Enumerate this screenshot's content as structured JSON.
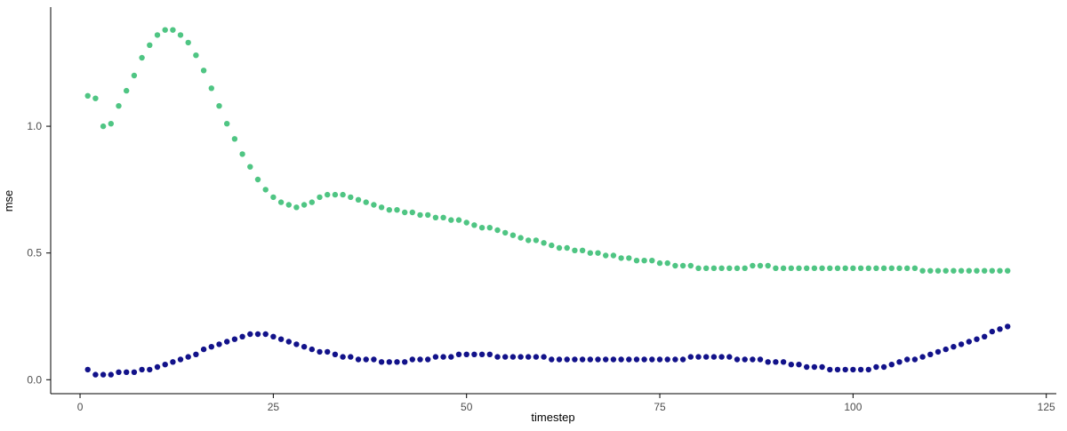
{
  "chart_data": {
    "type": "scatter",
    "title": "",
    "xlabel": "timestep",
    "ylabel": "mse",
    "x_ticks": [
      0,
      25,
      50,
      75,
      100,
      125
    ],
    "y_ticks": [
      0.0,
      0.5,
      1.0
    ],
    "xlim": [
      -3.8,
      126.3
    ],
    "ylim": [
      -0.055,
      1.47
    ],
    "grid": "off",
    "legend": "none",
    "axis_color": "#000000",
    "tick_label_color": "#4d4d4d",
    "series": [
      {
        "name": "green",
        "color": "#4fc583",
        "x_start": 1,
        "values": [
          1.12,
          1.11,
          1.0,
          1.01,
          1.08,
          1.14,
          1.2,
          1.27,
          1.32,
          1.36,
          1.38,
          1.38,
          1.36,
          1.33,
          1.28,
          1.22,
          1.15,
          1.08,
          1.01,
          0.95,
          0.89,
          0.84,
          0.79,
          0.75,
          0.72,
          0.7,
          0.69,
          0.68,
          0.69,
          0.7,
          0.72,
          0.73,
          0.73,
          0.73,
          0.72,
          0.71,
          0.7,
          0.69,
          0.68,
          0.67,
          0.67,
          0.66,
          0.66,
          0.65,
          0.65,
          0.64,
          0.64,
          0.63,
          0.63,
          0.62,
          0.61,
          0.6,
          0.6,
          0.59,
          0.58,
          0.57,
          0.56,
          0.55,
          0.55,
          0.54,
          0.53,
          0.52,
          0.52,
          0.51,
          0.51,
          0.5,
          0.5,
          0.49,
          0.49,
          0.48,
          0.48,
          0.47,
          0.47,
          0.47,
          0.46,
          0.46,
          0.45,
          0.45,
          0.45,
          0.44,
          0.44,
          0.44,
          0.44,
          0.44,
          0.44,
          0.44,
          0.45,
          0.45,
          0.45,
          0.44,
          0.44,
          0.44,
          0.44,
          0.44,
          0.44,
          0.44,
          0.44,
          0.44,
          0.44,
          0.44,
          0.44,
          0.44,
          0.44,
          0.44,
          0.44,
          0.44,
          0.44,
          0.44,
          0.43,
          0.43,
          0.43,
          0.43,
          0.43,
          0.43,
          0.43,
          0.43,
          0.43,
          0.43,
          0.43,
          0.43
        ]
      },
      {
        "name": "navy",
        "color": "#12128a",
        "x_start": 1,
        "values": [
          0.04,
          0.02,
          0.02,
          0.02,
          0.03,
          0.03,
          0.03,
          0.04,
          0.04,
          0.05,
          0.06,
          0.07,
          0.08,
          0.09,
          0.1,
          0.12,
          0.13,
          0.14,
          0.15,
          0.16,
          0.17,
          0.18,
          0.18,
          0.18,
          0.17,
          0.16,
          0.15,
          0.14,
          0.13,
          0.12,
          0.11,
          0.11,
          0.1,
          0.09,
          0.09,
          0.08,
          0.08,
          0.08,
          0.07,
          0.07,
          0.07,
          0.07,
          0.08,
          0.08,
          0.08,
          0.09,
          0.09,
          0.09,
          0.1,
          0.1,
          0.1,
          0.1,
          0.1,
          0.09,
          0.09,
          0.09,
          0.09,
          0.09,
          0.09,
          0.09,
          0.08,
          0.08,
          0.08,
          0.08,
          0.08,
          0.08,
          0.08,
          0.08,
          0.08,
          0.08,
          0.08,
          0.08,
          0.08,
          0.08,
          0.08,
          0.08,
          0.08,
          0.08,
          0.09,
          0.09,
          0.09,
          0.09,
          0.09,
          0.09,
          0.08,
          0.08,
          0.08,
          0.08,
          0.07,
          0.07,
          0.07,
          0.06,
          0.06,
          0.05,
          0.05,
          0.05,
          0.04,
          0.04,
          0.04,
          0.04,
          0.04,
          0.04,
          0.05,
          0.05,
          0.06,
          0.07,
          0.08,
          0.08,
          0.09,
          0.1,
          0.11,
          0.12,
          0.13,
          0.14,
          0.15,
          0.16,
          0.17,
          0.19,
          0.2,
          0.21
        ]
      }
    ]
  }
}
